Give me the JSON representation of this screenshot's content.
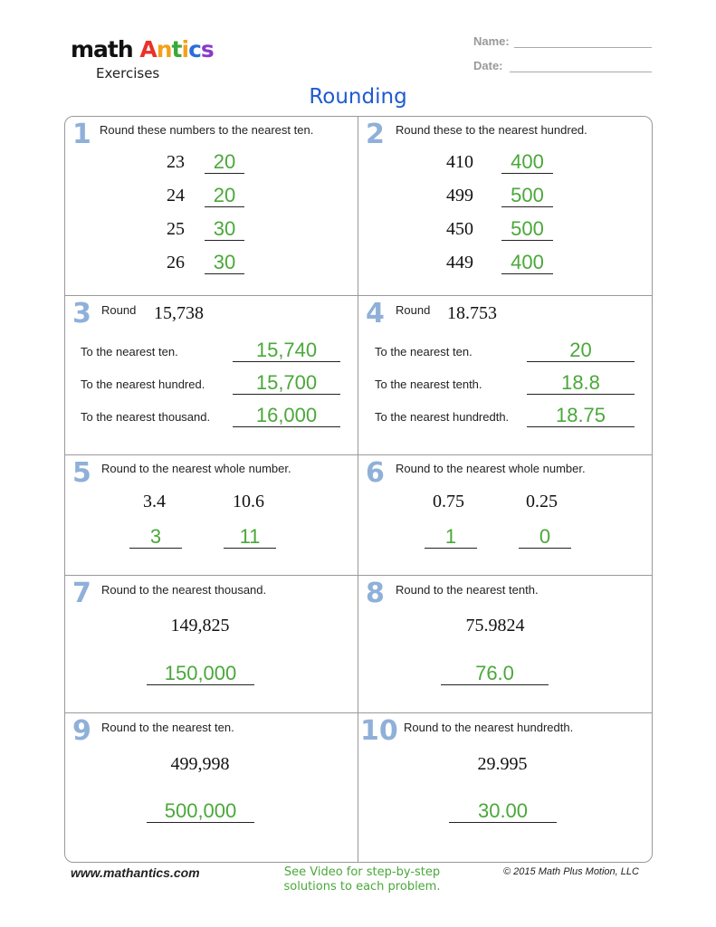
{
  "header": {
    "logo_text": "math Antics",
    "subtitle": "Exercises",
    "name_label": "Name:",
    "date_label": "Date:",
    "title": "Rounding"
  },
  "colors": {
    "title": "#1f5bd0",
    "answers": "#4aa83a",
    "problem_numbers": "#8fb0d8"
  },
  "problems": [
    {
      "number": "1",
      "prompt": "Round these numbers to the nearest ten.",
      "items": [
        {
          "value": "23",
          "answer": "20"
        },
        {
          "value": "24",
          "answer": "20"
        },
        {
          "value": "25",
          "answer": "30"
        },
        {
          "value": "26",
          "answer": "30"
        }
      ]
    },
    {
      "number": "2",
      "prompt": "Round these to the nearest hundred.",
      "items": [
        {
          "value": "410",
          "answer": "400"
        },
        {
          "value": "499",
          "answer": "500"
        },
        {
          "value": "450",
          "answer": "500"
        },
        {
          "value": "449",
          "answer": "400"
        }
      ]
    },
    {
      "number": "3",
      "prompt": "Round",
      "value": "15,738",
      "items": [
        {
          "label": "To the nearest ten.",
          "answer": "15,740"
        },
        {
          "label": "To the nearest hundred.",
          "answer": "15,700"
        },
        {
          "label": "To the nearest thousand.",
          "answer": "16,000"
        }
      ]
    },
    {
      "number": "4",
      "prompt": "Round",
      "value": "18.753",
      "items": [
        {
          "label": "To the nearest ten.",
          "answer": "20"
        },
        {
          "label": "To the nearest tenth.",
          "answer": "18.8"
        },
        {
          "label": "To the nearest hundredth.",
          "answer": "18.75"
        }
      ]
    },
    {
      "number": "5",
      "prompt": "Round to the nearest whole number.",
      "items": [
        {
          "value": "3.4",
          "answer": "3"
        },
        {
          "value": "10.6",
          "answer": "11"
        }
      ]
    },
    {
      "number": "6",
      "prompt": "Round to the nearest whole number.",
      "items": [
        {
          "value": "0.75",
          "answer": "1"
        },
        {
          "value": "0.25",
          "answer": "0"
        }
      ]
    },
    {
      "number": "7",
      "prompt": "Round to the nearest thousand.",
      "value": "149,825",
      "answer": "150,000"
    },
    {
      "number": "8",
      "prompt": "Round to the nearest tenth.",
      "value": "75.9824",
      "answer": "76.0"
    },
    {
      "number": "9",
      "prompt": "Round to the nearest ten.",
      "value": "499,998",
      "answer": "500,000"
    },
    {
      "number": "10",
      "prompt": "Round to the nearest hundredth.",
      "value": "29.995",
      "answer": "30.00"
    }
  ],
  "footer": {
    "website": "www.mathantics.com",
    "video_note": "See Video for step-by-step solutions to each problem.",
    "copyright": "© 2015 Math Plus Motion, LLC"
  }
}
